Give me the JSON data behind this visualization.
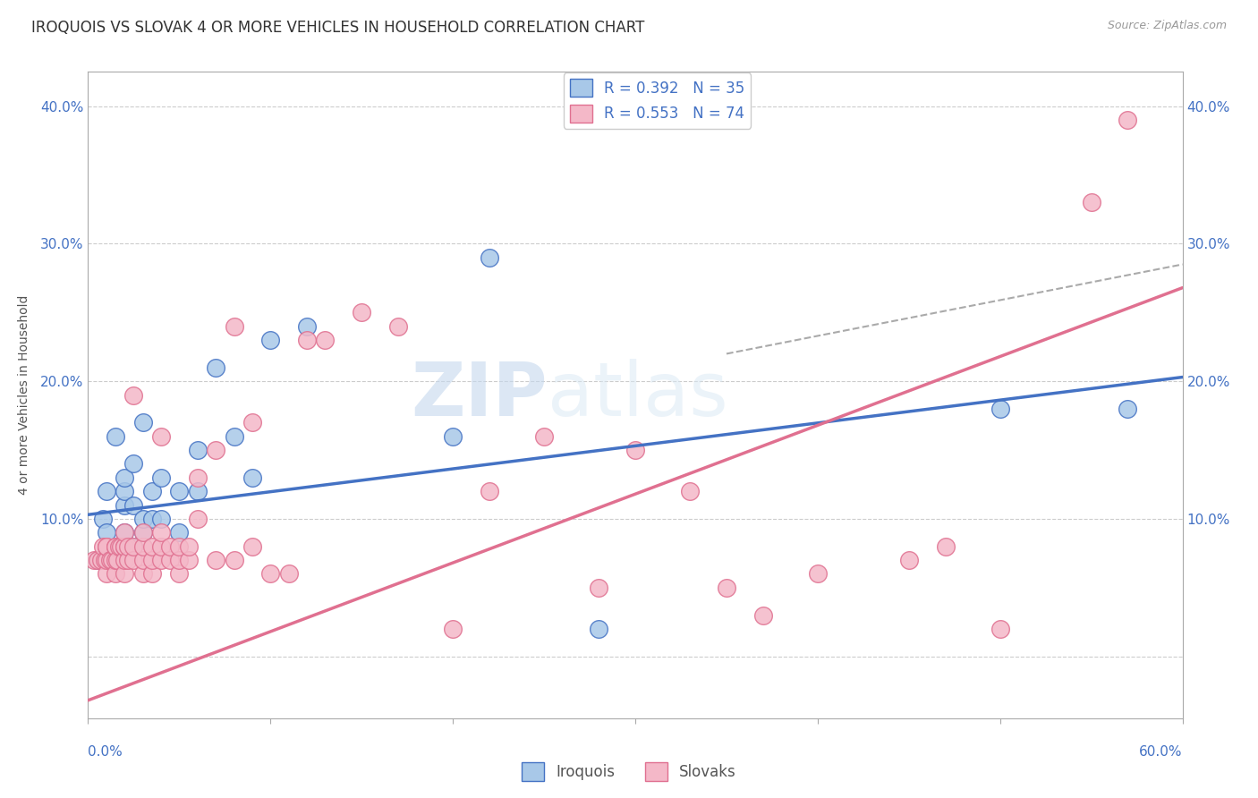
{
  "title": "IROQUOIS VS SLOVAK 4 OR MORE VEHICLES IN HOUSEHOLD CORRELATION CHART",
  "source": "Source: ZipAtlas.com",
  "ylabel": "4 or more Vehicles in Household",
  "yticks": [
    0.0,
    0.1,
    0.2,
    0.3,
    0.4
  ],
  "ytick_labels": [
    "",
    "10.0%",
    "20.0%",
    "30.0%",
    "40.0%"
  ],
  "xtick_labels_show": [
    "0.0%",
    "60.0%"
  ],
  "xlim": [
    0.0,
    0.6
  ],
  "ylim": [
    -0.045,
    0.425
  ],
  "watermark_zip": "ZIP",
  "watermark_atlas": "atlas",
  "legend_r1": "R = 0.392   N = 35",
  "legend_r2": "R = 0.553   N = 74",
  "iroquois_color": "#a8c8e8",
  "iroquois_line_color": "#4472C4",
  "iroquois_edge_color": "#4472C4",
  "slovak_color": "#f4b8c8",
  "slovak_line_color": "#e07090",
  "slovak_edge_color": "#e07090",
  "grid_color": "#cccccc",
  "background_color": "#ffffff",
  "title_fontsize": 12,
  "axis_label_fontsize": 10,
  "tick_fontsize": 11,
  "legend_fontsize": 12,
  "iroquois_x": [
    0.005,
    0.008,
    0.01,
    0.01,
    0.015,
    0.015,
    0.02,
    0.02,
    0.02,
    0.02,
    0.02,
    0.025,
    0.025,
    0.025,
    0.03,
    0.03,
    0.03,
    0.035,
    0.035,
    0.04,
    0.04,
    0.05,
    0.05,
    0.06,
    0.06,
    0.07,
    0.08,
    0.09,
    0.1,
    0.12,
    0.2,
    0.22,
    0.28,
    0.5,
    0.57
  ],
  "iroquois_y": [
    0.07,
    0.1,
    0.09,
    0.12,
    0.07,
    0.16,
    0.08,
    0.09,
    0.11,
    0.12,
    0.13,
    0.08,
    0.11,
    0.14,
    0.09,
    0.1,
    0.17,
    0.1,
    0.12,
    0.1,
    0.13,
    0.09,
    0.12,
    0.12,
    0.15,
    0.21,
    0.16,
    0.13,
    0.23,
    0.24,
    0.16,
    0.29,
    0.02,
    0.18,
    0.18
  ],
  "slovak_x": [
    0.003,
    0.005,
    0.007,
    0.008,
    0.009,
    0.01,
    0.01,
    0.01,
    0.01,
    0.012,
    0.013,
    0.015,
    0.015,
    0.015,
    0.015,
    0.016,
    0.017,
    0.018,
    0.02,
    0.02,
    0.02,
    0.02,
    0.02,
    0.022,
    0.022,
    0.025,
    0.025,
    0.025,
    0.03,
    0.03,
    0.03,
    0.03,
    0.035,
    0.035,
    0.035,
    0.04,
    0.04,
    0.04,
    0.04,
    0.045,
    0.045,
    0.05,
    0.05,
    0.05,
    0.055,
    0.055,
    0.06,
    0.06,
    0.07,
    0.07,
    0.08,
    0.08,
    0.09,
    0.09,
    0.1,
    0.11,
    0.12,
    0.13,
    0.15,
    0.17,
    0.2,
    0.22,
    0.25,
    0.28,
    0.3,
    0.33,
    0.35,
    0.37,
    0.4,
    0.45,
    0.47,
    0.5,
    0.55,
    0.57
  ],
  "slovak_y": [
    0.07,
    0.07,
    0.07,
    0.08,
    0.07,
    0.06,
    0.07,
    0.08,
    0.08,
    0.07,
    0.07,
    0.06,
    0.07,
    0.08,
    0.08,
    0.07,
    0.08,
    0.08,
    0.06,
    0.07,
    0.08,
    0.08,
    0.09,
    0.07,
    0.08,
    0.07,
    0.08,
    0.19,
    0.06,
    0.07,
    0.08,
    0.09,
    0.06,
    0.07,
    0.08,
    0.07,
    0.08,
    0.09,
    0.16,
    0.07,
    0.08,
    0.06,
    0.07,
    0.08,
    0.07,
    0.08,
    0.1,
    0.13,
    0.07,
    0.15,
    0.07,
    0.24,
    0.08,
    0.17,
    0.06,
    0.06,
    0.23,
    0.23,
    0.25,
    0.24,
    0.02,
    0.12,
    0.16,
    0.05,
    0.15,
    0.12,
    0.05,
    0.03,
    0.06,
    0.07,
    0.08,
    0.02,
    0.33,
    0.39
  ],
  "iroquois_reg": [
    0.103,
    0.203
  ],
  "slovak_reg": [
    -0.032,
    0.268
  ]
}
